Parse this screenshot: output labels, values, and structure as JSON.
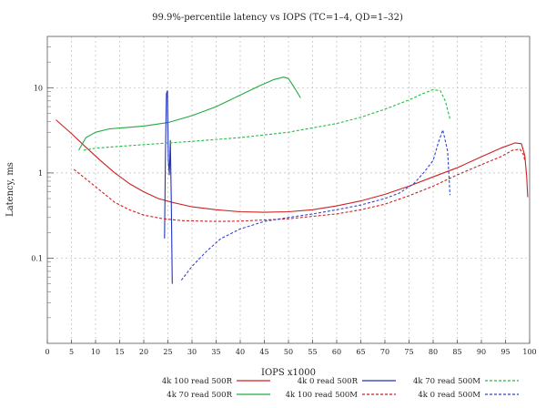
{
  "chart_data": {
    "type": "line",
    "title": "99.9%-percentile latency vs IOPS (TC=1–4, QD=1–32)",
    "xlabel": "IOPS x1000",
    "ylabel": "Latency, ms",
    "xlim": [
      0,
      100
    ],
    "ylim": [
      0.01,
      40
    ],
    "y_scale": "log",
    "grid": true,
    "legend_position": "bottom",
    "x_ticks": [
      "0",
      "5",
      "10",
      "15",
      "20",
      "25",
      "30",
      "35",
      "40",
      "45",
      "50",
      "55",
      "60",
      "65",
      "70",
      "75",
      "80",
      "85",
      "90",
      "95",
      "100"
    ],
    "y_ticks": [
      {
        "value": 0.1,
        "label": "0.1"
      },
      {
        "value": 1,
        "label": "1"
      },
      {
        "value": 10,
        "label": "10"
      }
    ],
    "series": [
      {
        "name": "4k 100 read 500R",
        "color": "#cc2222",
        "dash": "solid",
        "x": [
          1.8,
          5,
          8,
          11,
          14,
          17,
          20,
          23,
          26,
          30,
          35,
          40,
          45,
          50,
          55,
          60,
          65,
          70,
          75,
          80,
          85,
          90,
          94,
          97,
          98.3,
          99,
          99.4,
          99.6
        ],
        "y": [
          4.2,
          2.9,
          2.0,
          1.4,
          1.0,
          0.75,
          0.6,
          0.5,
          0.45,
          0.4,
          0.37,
          0.35,
          0.345,
          0.35,
          0.37,
          0.41,
          0.47,
          0.56,
          0.7,
          0.9,
          1.15,
          1.55,
          1.95,
          2.25,
          2.2,
          1.6,
          0.9,
          0.52
        ]
      },
      {
        "name": "4k 70 read 500R",
        "color": "#22aa44",
        "dash": "solid",
        "x": [
          6.5,
          8,
          10,
          13,
          16,
          20,
          25,
          30,
          35,
          40,
          44,
          47,
          49,
          50,
          51,
          52.5
        ],
        "y": [
          1.85,
          2.6,
          3.0,
          3.3,
          3.4,
          3.55,
          3.9,
          4.7,
          6.0,
          8.2,
          10.5,
          12.5,
          13.3,
          12.8,
          10.5,
          7.6
        ]
      },
      {
        "name": "4k 0 read 500R",
        "color": "#2233bb",
        "dash": "solid",
        "x": [
          24.3,
          24.5,
          24.7,
          24.9,
          25.1,
          25.3,
          25.5,
          25.7,
          25.9
        ],
        "y": [
          0.17,
          1.6,
          8.5,
          9.2,
          1.4,
          0.95,
          2.4,
          0.5,
          0.05
        ]
      },
      {
        "name": "4k 70 read 500M",
        "color": "#22bb44",
        "dash": "dashed",
        "x": [
          7.5,
          10,
          15,
          20,
          30,
          40,
          50,
          60,
          65,
          70,
          75,
          78,
          80,
          81.5,
          82.5,
          83.5
        ],
        "y": [
          1.85,
          1.95,
          2.05,
          2.15,
          2.35,
          2.6,
          3.0,
          3.8,
          4.5,
          5.6,
          7.2,
          8.6,
          9.5,
          9.2,
          7.0,
          4.3
        ]
      },
      {
        "name": "4k 100 read 500M",
        "color": "#cc2222",
        "dash": "dashed",
        "x": [
          5.5,
          8,
          11,
          14,
          17,
          20,
          24,
          28,
          35,
          40,
          50,
          60,
          65,
          70,
          75,
          80,
          85,
          90,
          94,
          96.5,
          98,
          98.7,
          99
        ],
        "y": [
          1.1,
          0.85,
          0.62,
          0.45,
          0.37,
          0.32,
          0.29,
          0.275,
          0.27,
          0.272,
          0.29,
          0.33,
          0.37,
          0.43,
          0.54,
          0.7,
          0.95,
          1.25,
          1.55,
          1.85,
          1.9,
          1.65,
          1.4
        ]
      },
      {
        "name": "4k 0 read 500M",
        "color": "#3344cc",
        "dash": "dashed",
        "x": [
          27.8,
          30,
          33,
          36,
          40,
          45,
          50,
          55,
          60,
          65,
          70,
          73,
          76,
          78,
          80,
          81,
          82,
          83,
          83.5
        ],
        "y": [
          0.055,
          0.08,
          0.12,
          0.17,
          0.22,
          0.27,
          0.3,
          0.33,
          0.37,
          0.42,
          0.5,
          0.58,
          0.75,
          1.0,
          1.4,
          2.2,
          3.2,
          1.8,
          0.55
        ]
      }
    ],
    "legend_rows": [
      [
        "4k 100 read 500R",
        "4k 0 read 500R",
        "4k 70 read 500M"
      ],
      [
        "4k 70 read 500R",
        "4k 100 read 500M",
        "4k 0 read 500M"
      ]
    ]
  }
}
